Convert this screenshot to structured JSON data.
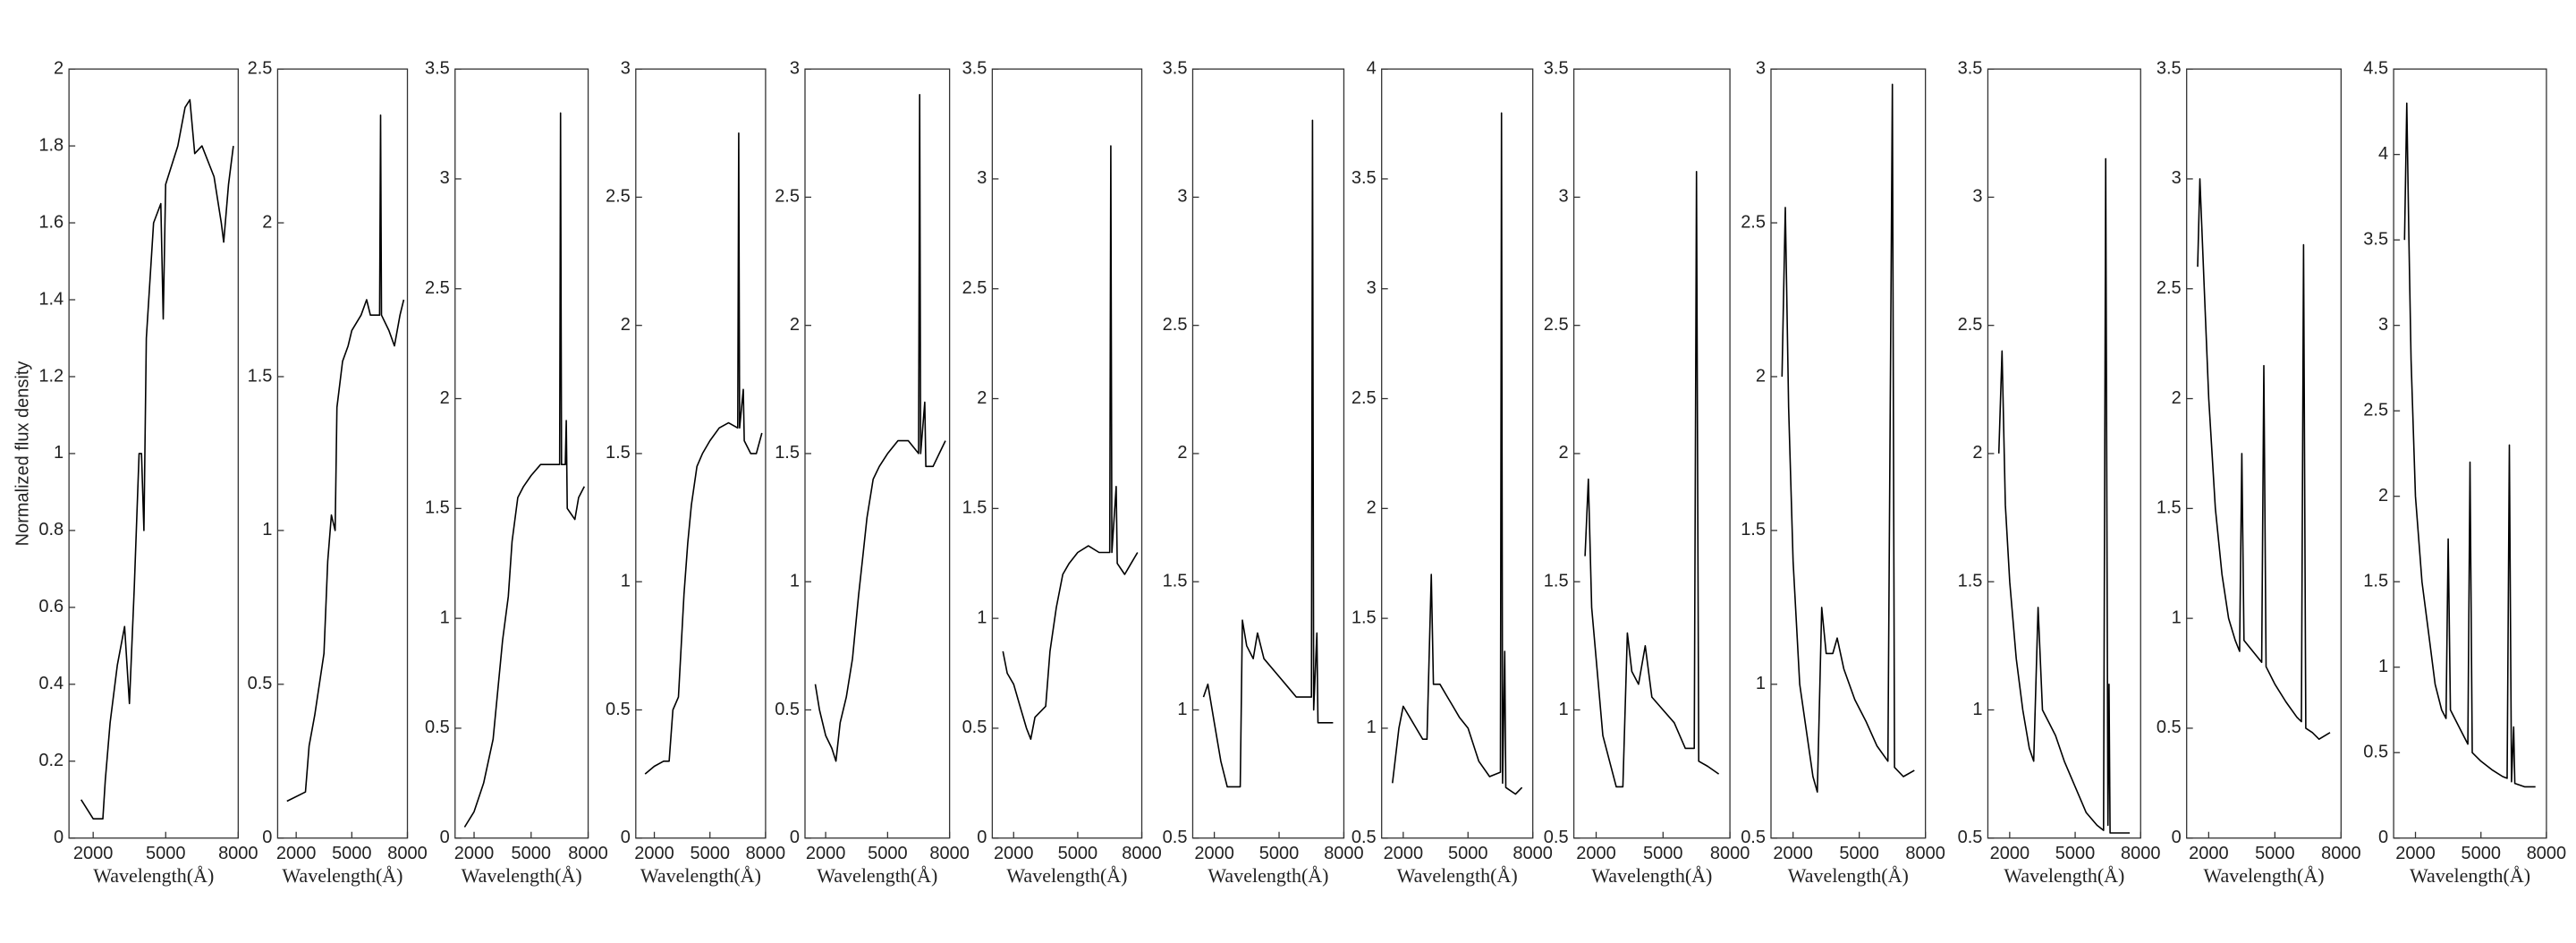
{
  "chart_data": [
    {
      "type": "line",
      "y_label": "Normalized flux density",
      "x_label": "Wavelength(Å)",
      "xlim": [
        1000,
        8000
      ],
      "xticks": [
        2000,
        5000,
        8000
      ],
      "ylim": [
        0,
        2
      ],
      "yticks": [
        0,
        0.2,
        0.4,
        0.6,
        0.8,
        1,
        1.2,
        1.4,
        1.6,
        1.8,
        2
      ],
      "x": [
        1500,
        2000,
        2400,
        2500,
        2700,
        3000,
        3300,
        3500,
        3700,
        3900,
        4000,
        4100,
        4200,
        4500,
        4800,
        4900,
        5000,
        5500,
        5800,
        6000,
        6200,
        6500,
        7000,
        7300,
        7400,
        7600,
        7800
      ],
      "series": [
        {
          "color": "#000000",
          "values": [
            0.1,
            0.05,
            0.05,
            0.15,
            0.3,
            0.45,
            0.55,
            0.35,
            0.65,
            1,
            1,
            0.8,
            1.3,
            1.6,
            1.65,
            1.35,
            1.7,
            1.8,
            1.9,
            1.92,
            1.78,
            1.8,
            1.72,
            1.6,
            1.55,
            1.7,
            1.8
          ]
        }
      ]
    },
    {
      "type": "line",
      "x_label": "Wavelength(Å)",
      "xlim": [
        1000,
        8000
      ],
      "xticks": [
        2000,
        5000,
        8000
      ],
      "ylim": [
        0,
        2.5
      ],
      "yticks": [
        0,
        0.5,
        1,
        1.5,
        2,
        2.5
      ],
      "x": [
        1500,
        2500,
        2700,
        3000,
        3500,
        3700,
        3900,
        4100,
        4200,
        4500,
        4800,
        5000,
        5500,
        5800,
        6000,
        6500,
        6550,
        6600,
        7000,
        7300,
        7600,
        7800
      ],
      "series": [
        {
          "color": "#000000",
          "values": [
            0.12,
            0.15,
            0.3,
            0.4,
            0.6,
            0.9,
            1.05,
            1,
            1.4,
            1.55,
            1.6,
            1.65,
            1.7,
            1.75,
            1.7,
            1.7,
            2.35,
            1.7,
            1.65,
            1.6,
            1.7,
            1.75
          ]
        }
      ]
    },
    {
      "type": "line",
      "x_label": "Wavelength(Å)",
      "xlim": [
        1000,
        8000
      ],
      "xticks": [
        2000,
        5000,
        8000
      ],
      "ylim": [
        0,
        3.5
      ],
      "yticks": [
        0,
        0.5,
        1,
        1.5,
        2,
        2.5,
        3,
        3.5
      ],
      "x": [
        1500,
        2000,
        2500,
        3000,
        3500,
        3800,
        4000,
        4300,
        4600,
        5000,
        5500,
        6000,
        6500,
        6550,
        6600,
        6800,
        6850,
        6900,
        7300,
        7500,
        7800
      ],
      "series": [
        {
          "color": "#000000",
          "values": [
            0.05,
            0.12,
            0.25,
            0.45,
            0.9,
            1.1,
            1.35,
            1.55,
            1.6,
            1.65,
            1.7,
            1.7,
            1.7,
            3.3,
            1.7,
            1.7,
            1.9,
            1.5,
            1.45,
            1.55,
            1.6
          ]
        }
      ]
    },
    {
      "type": "line",
      "x_label": "Wavelength(Å)",
      "xlim": [
        1000,
        8000
      ],
      "xticks": [
        2000,
        5000,
        8000
      ],
      "ylim": [
        0,
        3
      ],
      "yticks": [
        0,
        0.5,
        1,
        1.5,
        2,
        2.5,
        3
      ],
      "x": [
        1500,
        2000,
        2500,
        2800,
        3000,
        3300,
        3600,
        3800,
        4000,
        4300,
        4600,
        5000,
        5500,
        6000,
        6500,
        6550,
        6600,
        6800,
        6850,
        7200,
        7500,
        7800
      ],
      "series": [
        {
          "color": "#000000",
          "values": [
            0.25,
            0.28,
            0.3,
            0.3,
            0.5,
            0.55,
            0.95,
            1.15,
            1.3,
            1.45,
            1.5,
            1.55,
            1.6,
            1.62,
            1.6,
            2.75,
            1.6,
            1.75,
            1.55,
            1.5,
            1.5,
            1.58
          ]
        }
      ]
    },
    {
      "type": "line",
      "x_label": "Wavelength(Å)",
      "xlim": [
        1000,
        8000
      ],
      "xticks": [
        2000,
        5000,
        8000
      ],
      "ylim": [
        0,
        3
      ],
      "yticks": [
        0,
        0.5,
        1,
        1.5,
        2,
        2.5,
        3
      ],
      "x": [
        1500,
        1700,
        2000,
        2300,
        2500,
        2700,
        3000,
        3300,
        3600,
        3800,
        4000,
        4300,
        4600,
        5000,
        5500,
        6000,
        6500,
        6550,
        6600,
        6800,
        6850,
        7200,
        7500,
        7800
      ],
      "series": [
        {
          "color": "#000000",
          "values": [
            0.6,
            0.5,
            0.4,
            0.35,
            0.3,
            0.45,
            0.55,
            0.7,
            0.95,
            1.1,
            1.25,
            1.4,
            1.45,
            1.5,
            1.55,
            1.55,
            1.5,
            2.9,
            1.5,
            1.7,
            1.45,
            1.45,
            1.5,
            1.55
          ]
        }
      ]
    },
    {
      "type": "line",
      "x_label": "Wavelength(Å)",
      "xlim": [
        1000,
        8000
      ],
      "xticks": [
        2000,
        5000,
        8000
      ],
      "ylim": [
        0,
        3.5
      ],
      "yticks": [
        0,
        0.5,
        1,
        1.5,
        2,
        2.5,
        3,
        3.5
      ],
      "x": [
        1500,
        1700,
        2000,
        2300,
        2600,
        2800,
        3000,
        3500,
        3700,
        4000,
        4300,
        4600,
        5000,
        5500,
        6000,
        6500,
        6550,
        6600,
        6800,
        6850,
        7200,
        7500,
        7800
      ],
      "series": [
        {
          "color": "#000000",
          "values": [
            0.85,
            0.75,
            0.7,
            0.6,
            0.5,
            0.45,
            0.55,
            0.6,
            0.85,
            1.05,
            1.2,
            1.25,
            1.3,
            1.33,
            1.3,
            1.3,
            3.15,
            1.3,
            1.6,
            1.25,
            1.2,
            1.25,
            1.3
          ]
        }
      ]
    },
    {
      "type": "line",
      "x_label": "Wavelength(Å)",
      "xlim": [
        1000,
        8000
      ],
      "xticks": [
        2000,
        5000,
        8000
      ],
      "ylim": [
        0.5,
        3.5
      ],
      "yticks": [
        0.5,
        1,
        1.5,
        2,
        2.5,
        3,
        3.5
      ],
      "x": [
        1500,
        1700,
        2000,
        2300,
        2600,
        3000,
        3200,
        3300,
        3500,
        3800,
        4000,
        4300,
        4800,
        5300,
        5800,
        6500,
        6550,
        6600,
        6750,
        6800,
        7200,
        7500
      ],
      "series": [
        {
          "color": "#000000",
          "values": [
            1.05,
            1.1,
            0.95,
            0.8,
            0.7,
            0.7,
            0.7,
            1.35,
            1.25,
            1.2,
            1.3,
            1.2,
            1.15,
            1.1,
            1.05,
            1.05,
            3.3,
            1,
            1.3,
            0.95,
            0.95,
            0.95
          ]
        }
      ]
    },
    {
      "type": "line",
      "x_label": "Wavelength(Å)",
      "xlim": [
        1000,
        8000
      ],
      "xticks": [
        2000,
        5000,
        8000
      ],
      "ylim": [
        0.5,
        4
      ],
      "yticks": [
        0.5,
        1,
        1.5,
        2,
        2.5,
        3,
        3.5,
        4
      ],
      "x": [
        1500,
        1800,
        2000,
        2300,
        2600,
        2900,
        3100,
        3300,
        3400,
        3700,
        4000,
        4300,
        4600,
        5000,
        5500,
        6000,
        6500,
        6550,
        6600,
        6700,
        6750,
        7200,
        7500
      ],
      "series": [
        {
          "color": "#000000",
          "values": [
            0.75,
            1,
            1.1,
            1.05,
            1,
            0.95,
            0.95,
            1.7,
            1.2,
            1.2,
            1.15,
            1.1,
            1.05,
            1,
            0.85,
            0.78,
            0.8,
            3.8,
            0.75,
            1.35,
            0.73,
            0.7,
            0.73
          ]
        }
      ]
    },
    {
      "type": "line",
      "x_label": "Wavelength(Å)",
      "xlim": [
        1000,
        8000
      ],
      "xticks": [
        2000,
        5000,
        8000
      ],
      "ylim": [
        0.5,
        3.5
      ],
      "yticks": [
        0.5,
        1,
        1.5,
        2,
        2.5,
        3,
        3.5
      ],
      "x": [
        1500,
        1650,
        1800,
        2000,
        2300,
        2600,
        2900,
        3200,
        3400,
        3600,
        3900,
        4200,
        4500,
        5000,
        5500,
        6000,
        6400,
        6500,
        6600,
        7000,
        7500
      ],
      "series": [
        {
          "color": "#000000",
          "values": [
            1.6,
            1.9,
            1.4,
            1.2,
            0.9,
            0.8,
            0.7,
            0.7,
            1.3,
            1.15,
            1.1,
            1.25,
            1.05,
            1,
            0.95,
            0.85,
            0.85,
            3.1,
            0.8,
            0.78,
            0.75
          ]
        }
      ]
    },
    {
      "type": "line",
      "x_label": "Wavelength(Å)",
      "xlim": [
        1000,
        8000
      ],
      "xticks": [
        2000,
        5000,
        8000
      ],
      "ylim": [
        0.5,
        3
      ],
      "yticks": [
        0.5,
        1,
        1.5,
        2,
        2.5,
        3
      ],
      "x": [
        1500,
        1650,
        1800,
        2000,
        2300,
        2600,
        2900,
        3100,
        3300,
        3500,
        3800,
        4000,
        4300,
        4800,
        5300,
        5800,
        6300,
        6500,
        6600,
        7000,
        7500
      ],
      "series": [
        {
          "color": "#000000",
          "values": [
            2,
            2.55,
            1.9,
            1.4,
            1,
            0.85,
            0.7,
            0.65,
            1.25,
            1.1,
            1.1,
            1.15,
            1.05,
            0.95,
            0.88,
            0.8,
            0.75,
            2.95,
            0.73,
            0.7,
            0.72
          ]
        }
      ]
    },
    {
      "type": "line",
      "x_label": "Wavelength(Å)",
      "xlim": [
        1000,
        8000
      ],
      "xticks": [
        2000,
        5000,
        8000
      ],
      "ylim": [
        0.5,
        3.5
      ],
      "yticks": [
        0.5,
        1,
        1.5,
        2,
        2.5,
        3,
        3.5
      ],
      "x": [
        1500,
        1650,
        1800,
        2000,
        2300,
        2600,
        2900,
        3100,
        3300,
        3500,
        3800,
        4100,
        4500,
        5000,
        5500,
        6000,
        6300,
        6400,
        6500,
        6550,
        6600,
        7000,
        7500
      ],
      "series": [
        {
          "color": "#000000",
          "values": [
            2,
            2.4,
            1.8,
            1.5,
            1.2,
            1,
            0.85,
            0.8,
            1.4,
            1,
            0.95,
            0.9,
            0.8,
            0.7,
            0.6,
            0.55,
            0.53,
            3.15,
            0.55,
            1.1,
            0.52,
            0.52,
            0.52
          ]
        }
      ]
    },
    {
      "type": "line",
      "x_label": "Wavelength(Å)",
      "xlim": [
        1000,
        8000
      ],
      "xticks": [
        2000,
        5000,
        8000
      ],
      "ylim": [
        0,
        3.5
      ],
      "yticks": [
        0,
        0.5,
        1,
        1.5,
        2,
        2.5,
        3,
        3.5
      ],
      "x": [
        1500,
        1600,
        1800,
        2000,
        2300,
        2600,
        2900,
        3200,
        3400,
        3500,
        3600,
        4000,
        4400,
        4500,
        4600,
        5000,
        5500,
        6000,
        6200,
        6300,
        6400,
        6700,
        7000,
        7500
      ],
      "series": [
        {
          "color": "#000000",
          "values": [
            2.6,
            3,
            2.5,
            2,
            1.5,
            1.2,
            1,
            0.9,
            0.85,
            1.75,
            0.9,
            0.85,
            0.8,
            2.15,
            0.78,
            0.7,
            0.62,
            0.55,
            0.53,
            2.7,
            0.5,
            0.48,
            0.45,
            0.48
          ]
        }
      ]
    },
    {
      "type": "line",
      "x_label": "Wavelength(Å)",
      "xlim": [
        1000,
        8000
      ],
      "xticks": [
        2000,
        5000,
        8000
      ],
      "ylim": [
        0,
        4.5
      ],
      "yticks": [
        0,
        0.5,
        1,
        1.5,
        2,
        2.5,
        3,
        3.5,
        4,
        4.5
      ],
      "x": [
        1500,
        1600,
        1700,
        1800,
        2000,
        2300,
        2600,
        2900,
        3200,
        3400,
        3500,
        3600,
        4000,
        4400,
        4500,
        4600,
        5000,
        5500,
        6000,
        6200,
        6300,
        6400,
        6500,
        6550,
        7000,
        7500
      ],
      "series": [
        {
          "color": "#000000",
          "values": [
            3.5,
            4.3,
            3.5,
            2.8,
            2,
            1.5,
            1.2,
            0.9,
            0.75,
            0.7,
            1.75,
            0.75,
            0.65,
            0.55,
            2.2,
            0.5,
            0.45,
            0.4,
            0.36,
            0.35,
            2.3,
            0.33,
            0.65,
            0.32,
            0.3,
            0.3
          ]
        }
      ]
    }
  ]
}
